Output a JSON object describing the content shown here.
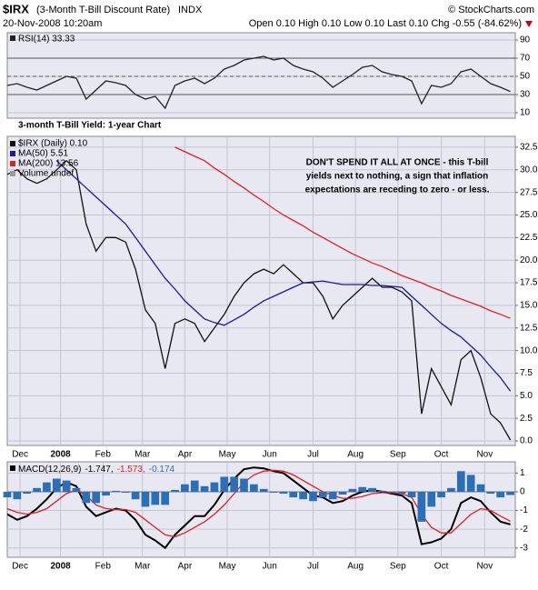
{
  "header": {
    "symbol": "$IRX",
    "name": "(3-Month T-Bill Discount Rate)",
    "exchange": "INDX",
    "copyright": "© StockCharts.com",
    "date": "20-Nov-2008 10:20am",
    "quote": "Open 0.10  High 0.10  Low 0.10  Last 0.10  Chg -0.55 (-84.62%)"
  },
  "chart_data": [
    {
      "type": "line",
      "x": [
        0,
        1,
        2,
        3,
        4,
        5,
        6,
        7,
        8,
        9,
        10,
        11,
        12,
        13,
        14,
        15,
        16,
        17,
        18,
        19,
        20,
        21,
        22,
        23,
        24,
        25,
        26,
        27,
        28,
        29,
        30,
        31,
        32,
        33,
        34,
        35,
        36,
        37,
        38,
        39,
        40,
        41,
        42,
        43,
        44,
        45,
        46,
        47,
        48,
        49,
        50,
        51
      ],
      "xlim": [
        0,
        51.5
      ],
      "ylim": [
        4,
        98
      ],
      "yticks": [
        10,
        30,
        50,
        70,
        90
      ],
      "reference_lines": [
        70,
        50,
        30
      ],
      "grid": true,
      "series": [
        {
          "name": "RSI(14) 33.33",
          "color": "#222222",
          "values": [
            40,
            42,
            38,
            35,
            40,
            45,
            50,
            48,
            25,
            35,
            45,
            43,
            40,
            30,
            25,
            28,
            15,
            40,
            45,
            48,
            42,
            48,
            58,
            62,
            68,
            70,
            72,
            68,
            70,
            62,
            58,
            55,
            48,
            38,
            45,
            52,
            60,
            62,
            55,
            52,
            50,
            45,
            20,
            40,
            38,
            42,
            55,
            58,
            50,
            42,
            38,
            33.33
          ]
        }
      ]
    },
    {
      "type": "line",
      "title": "3-month T-Bill Yield: 1-year Chart",
      "annotation": [
        "DON'T SPEND IT ALL AT ONCE - this T-bill",
        "yields next to nothing, a sign that inflation",
        "expectations are receding to zero - or less."
      ],
      "x": [
        0,
        1,
        2,
        3,
        4,
        5,
        6,
        7,
        8,
        9,
        10,
        11,
        12,
        13,
        14,
        15,
        16,
        17,
        18,
        19,
        20,
        21,
        22,
        23,
        24,
        25,
        26,
        27,
        28,
        29,
        30,
        31,
        32,
        33,
        34,
        35,
        36,
        37,
        38,
        39,
        40,
        41,
        42,
        43,
        44,
        45,
        46,
        47,
        48,
        49,
        50,
        51
      ],
      "xlim": [
        0,
        51.5
      ],
      "ylim": [
        -0.5,
        33.7
      ],
      "yticks": [
        {
          "value": 0,
          "label": "0.0"
        },
        2.5,
        {
          "value": 5,
          "label": "5.0"
        },
        7.5,
        {
          "value": 10,
          "label": "10.0"
        },
        12.5,
        {
          "value": 15,
          "label": "15.0"
        },
        17.5,
        {
          "value": 20,
          "label": "20.0"
        },
        22.5,
        {
          "value": 25,
          "label": "25.0"
        },
        27.5,
        {
          "value": 30,
          "label": "30.0"
        },
        32.5
      ],
      "xticks": [
        {
          "value": 1.3,
          "label": "Dec"
        },
        {
          "value": 5.4,
          "label": "2008"
        },
        {
          "value": 9.7,
          "label": "Feb"
        },
        {
          "value": 13.7,
          "label": "Mar"
        },
        {
          "value": 18.0,
          "label": "Apr"
        },
        {
          "value": 22.3,
          "label": "May"
        },
        {
          "value": 26.6,
          "label": "Jun"
        },
        {
          "value": 31.0,
          "label": "Jul"
        },
        {
          "value": 35.3,
          "label": "Aug"
        },
        {
          "value": 39.6,
          "label": "Sep"
        },
        {
          "value": 44.0,
          "label": "Oct"
        },
        {
          "value": 48.4,
          "label": "Nov"
        }
      ],
      "grid": true,
      "legend_extra": "Volume undef",
      "series": [
        {
          "name": "$IRX (Daily) 0.10",
          "color": "#111111",
          "values": [
            29.5,
            30,
            29,
            28.5,
            29,
            30,
            31,
            30,
            24,
            21,
            22.5,
            22.5,
            22,
            19,
            14.5,
            13,
            8,
            13,
            13.5,
            13,
            11,
            12.5,
            14,
            16,
            17.5,
            18.5,
            19,
            18.5,
            19.5,
            18.5,
            17.5,
            17.5,
            16,
            13.5,
            15,
            16,
            17,
            18,
            17,
            17,
            16.5,
            15.5,
            3,
            8,
            6,
            4,
            9,
            10,
            7,
            3,
            2,
            0.1
          ]
        },
        {
          "name": "MA(50) 5.51",
          "color": "#1a1a9a",
          "values": [
            null,
            null,
            null,
            null,
            null,
            31,
            30,
            29,
            28,
            27,
            26,
            25,
            24,
            22.5,
            21,
            19.5,
            18,
            16.8,
            15.5,
            14.5,
            13.5,
            13.1,
            12.8,
            13.4,
            14,
            14.8,
            15.5,
            16,
            16.5,
            17,
            17.5,
            17.6,
            17.7,
            17.5,
            17.3,
            17.3,
            17.3,
            17.2,
            17.2,
            17.1,
            17.0,
            16.0,
            15,
            14,
            13,
            12.2,
            11.5,
            10.5,
            9.5,
            8.2,
            7,
            5.51
          ]
        },
        {
          "name": "MA(200) 13.56",
          "color": "#e02020",
          "values": [
            null,
            null,
            null,
            null,
            null,
            null,
            null,
            null,
            null,
            null,
            null,
            null,
            null,
            null,
            null,
            null,
            null,
            32.5,
            32,
            31.5,
            31,
            30.2,
            29.5,
            28.7,
            28,
            27.2,
            26.5,
            25.7,
            25,
            24.4,
            23.8,
            23.1,
            22.5,
            21.9,
            21.3,
            20.7,
            20.2,
            19.7,
            19.3,
            18.8,
            18.3,
            17.9,
            17.5,
            17,
            16.6,
            16.1,
            15.7,
            15.3,
            14.9,
            14.4,
            14.0,
            13.56
          ]
        }
      ]
    },
    {
      "type": "line",
      "label": "MACD(12,26,9)",
      "x": [
        0,
        1,
        2,
        3,
        4,
        5,
        6,
        7,
        8,
        9,
        10,
        11,
        12,
        13,
        14,
        15,
        16,
        17,
        18,
        19,
        20,
        21,
        22,
        23,
        24,
        25,
        26,
        27,
        28,
        29,
        30,
        31,
        32,
        33,
        34,
        35,
        36,
        37,
        38,
        39,
        40,
        41,
        42,
        43,
        44,
        45,
        46,
        47,
        48,
        49,
        50,
        51
      ],
      "xlim": [
        0,
        51.5
      ],
      "ylim": [
        -3.5,
        1.6
      ],
      "yticks": [
        -3,
        -2,
        -1,
        0,
        1
      ],
      "xticks": [
        {
          "value": 1.3,
          "label": "Dec"
        },
        {
          "value": 5.4,
          "label": "2008"
        },
        {
          "value": 9.7,
          "label": "Feb"
        },
        {
          "value": 13.7,
          "label": "Mar"
        },
        {
          "value": 18.0,
          "label": "Apr"
        },
        {
          "value": 22.3,
          "label": "May"
        },
        {
          "value": 26.6,
          "label": "Jun"
        },
        {
          "value": 31.0,
          "label": "Jul"
        },
        {
          "value": 35.3,
          "label": "Aug"
        },
        {
          "value": 39.6,
          "label": "Sep"
        },
        {
          "value": 44.0,
          "label": "Oct"
        },
        {
          "value": 48.4,
          "label": "Nov"
        }
      ],
      "grid": true,
      "series": [
        {
          "name": "-1.747,",
          "color": "#000000",
          "type": "line",
          "values": [
            -1.2,
            -1.5,
            -1.3,
            -0.9,
            -0.4,
            0.2,
            0.5,
            0.3,
            -0.8,
            -1.3,
            -1.1,
            -0.9,
            -1.0,
            -1.5,
            -2.3,
            -2.6,
            -3.0,
            -2.3,
            -1.8,
            -1.3,
            -1.3,
            -0.7,
            0.1,
            0.7,
            1.2,
            1.3,
            1.25,
            1.1,
            1.0,
            0.6,
            0.2,
            -0.2,
            -0.3,
            -0.6,
            -0.5,
            -0.2,
            0.0,
            0.1,
            0.0,
            -0.1,
            -0.2,
            -0.6,
            -2.8,
            -2.7,
            -2.5,
            -2.0,
            -0.6,
            -0.3,
            -0.5,
            -1.1,
            -1.6,
            -1.747
          ]
        },
        {
          "name": "-1.573,",
          "color": "#e02020",
          "type": "line",
          "values": [
            -0.9,
            -1.1,
            -1.2,
            -1.1,
            -0.9,
            -0.5,
            -0.1,
            0.1,
            -0.2,
            -0.7,
            -0.9,
            -0.95,
            -0.95,
            -1.1,
            -1.5,
            -1.9,
            -2.3,
            -2.4,
            -2.2,
            -1.9,
            -1.6,
            -1.2,
            -0.7,
            -0.1,
            0.5,
            0.9,
            1.1,
            1.15,
            1.1,
            0.9,
            0.6,
            0.3,
            0.0,
            -0.2,
            -0.35,
            -0.35,
            -0.25,
            -0.1,
            -0.05,
            -0.05,
            -0.1,
            -0.3,
            -1.2,
            -1.9,
            -2.2,
            -2.2,
            -1.7,
            -1.2,
            -0.9,
            -1.0,
            -1.3,
            -1.573
          ]
        },
        {
          "name": "-0.174",
          "color": "#2a6fb8",
          "type": "bar",
          "values": [
            -0.3,
            -0.4,
            -0.1,
            0.2,
            0.5,
            0.7,
            0.6,
            0.2,
            -0.6,
            -0.6,
            -0.2,
            0.05,
            -0.05,
            -0.4,
            -0.8,
            -0.7,
            -0.7,
            0.1,
            0.4,
            0.6,
            0.3,
            0.5,
            0.8,
            0.8,
            0.7,
            0.4,
            0.15,
            -0.05,
            -0.1,
            -0.3,
            -0.4,
            -0.5,
            -0.3,
            -0.4,
            -0.15,
            0.15,
            0.25,
            0.2,
            0.05,
            -0.05,
            -0.1,
            -0.3,
            -1.6,
            -0.8,
            -0.3,
            0.2,
            1.1,
            0.9,
            0.4,
            -0.1,
            -0.3,
            -0.174
          ]
        }
      ]
    }
  ]
}
